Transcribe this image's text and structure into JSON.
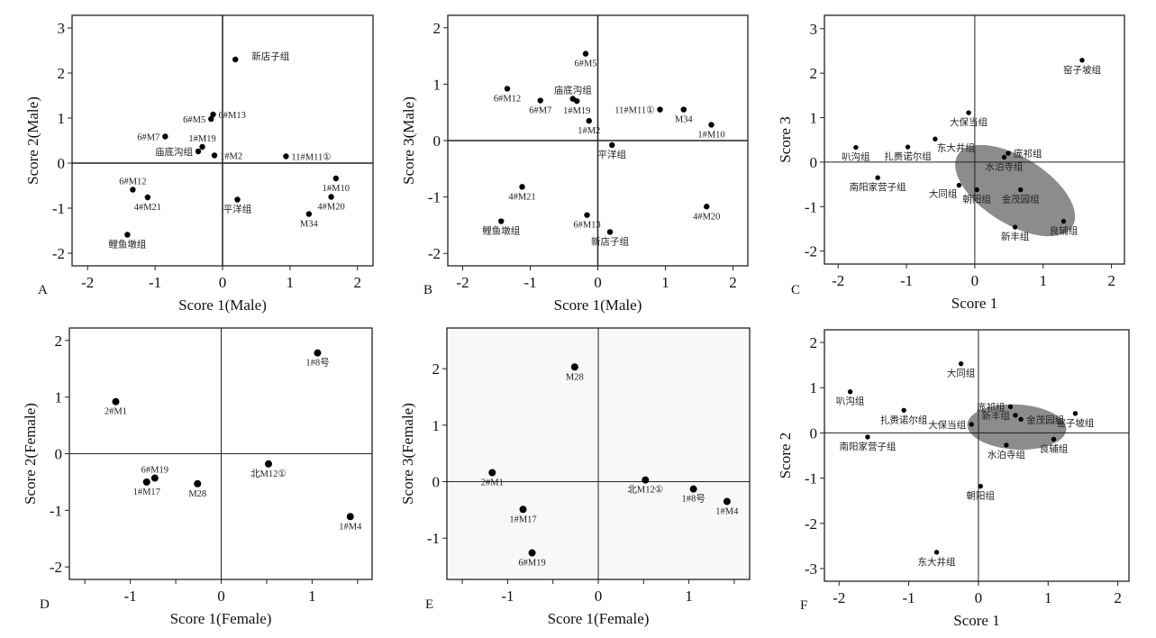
{
  "chart_data": [
    {
      "panel": "A",
      "type": "scatter",
      "xlabel": "Score 1(Male)",
      "ylabel": "Score 2(Male)",
      "xlim": [
        -2.23,
        2.23
      ],
      "ylim": [
        -2.28,
        3.28
      ],
      "xticks": [
        -2,
        -1,
        0,
        1,
        2
      ],
      "yticks": [
        -2,
        -1,
        0,
        1,
        2,
        3
      ],
      "points": [
        {
          "label": "新店子组",
          "x": 0.19,
          "y": 2.3,
          "pos": "right-far"
        },
        {
          "label": "6#M13",
          "x": -0.14,
          "y": 1.08,
          "pos": "right"
        },
        {
          "label": "6#M5",
          "x": -0.17,
          "y": 0.98,
          "pos": "left"
        },
        {
          "label": "6#M7",
          "x": -0.85,
          "y": 0.59,
          "pos": "left"
        },
        {
          "label": "1#M19",
          "x": -0.3,
          "y": 0.36,
          "pos": "above"
        },
        {
          "label": "庙底沟组",
          "x": -0.36,
          "y": 0.26,
          "pos": "left"
        },
        {
          "label": "1#M2",
          "x": -0.12,
          "y": 0.17,
          "pos": "right"
        },
        {
          "label": "11#M11①",
          "x": 0.94,
          "y": 0.15,
          "pos": "right"
        },
        {
          "label": "1#M10",
          "x": 1.68,
          "y": -0.34,
          "pos": "below"
        },
        {
          "label": "6#M12",
          "x": -1.33,
          "y": -0.59,
          "pos": "above"
        },
        {
          "label": "4#M21",
          "x": -1.11,
          "y": -0.76,
          "pos": "below"
        },
        {
          "label": "平洋组",
          "x": 0.22,
          "y": -0.81,
          "pos": "below"
        },
        {
          "label": "4#M20",
          "x": 1.61,
          "y": -0.75,
          "pos": "below"
        },
        {
          "label": "M34",
          "x": 1.28,
          "y": -1.13,
          "pos": "below"
        },
        {
          "label": "鲤鱼墩组",
          "x": -1.41,
          "y": -1.59,
          "pos": "below"
        }
      ]
    },
    {
      "panel": "B",
      "type": "scatter",
      "xlabel": "Score 1(Male)",
      "ylabel": "Score 3(Male)",
      "xlim": [
        -2.22,
        2.22
      ],
      "ylim": [
        -2.22,
        2.22
      ],
      "xticks": [
        -2,
        -1,
        0,
        1,
        2
      ],
      "yticks": [
        -2,
        -1,
        0,
        1,
        2
      ],
      "points": [
        {
          "label": "6#M5",
          "x": -0.18,
          "y": 1.54,
          "pos": "below"
        },
        {
          "label": "6#M12",
          "x": -1.34,
          "y": 0.92,
          "pos": "below"
        },
        {
          "label": "6#M7",
          "x": -0.85,
          "y": 0.71,
          "pos": "below"
        },
        {
          "label": "庙底沟组",
          "x": -0.37,
          "y": 0.74,
          "pos": "above"
        },
        {
          "label": "1#M19",
          "x": -0.31,
          "y": 0.7,
          "pos": "below"
        },
        {
          "label": "11#M11①",
          "x": 0.92,
          "y": 0.55,
          "pos": "left"
        },
        {
          "label": "M34",
          "x": 1.27,
          "y": 0.55,
          "pos": "below"
        },
        {
          "label": "1#M10",
          "x": 1.68,
          "y": 0.28,
          "pos": "below"
        },
        {
          "label": "1#M2",
          "x": -0.13,
          "y": 0.35,
          "pos": "below"
        },
        {
          "label": "平洋组",
          "x": 0.21,
          "y": -0.08,
          "pos": "below"
        },
        {
          "label": "4#M21",
          "x": -1.12,
          "y": -0.82,
          "pos": "below"
        },
        {
          "label": "4#M20",
          "x": 1.61,
          "y": -1.17,
          "pos": "below"
        },
        {
          "label": "6#M13",
          "x": -0.16,
          "y": -1.32,
          "pos": "below"
        },
        {
          "label": "鲤鱼墩组",
          "x": -1.43,
          "y": -1.43,
          "pos": "below"
        },
        {
          "label": "新店子组",
          "x": 0.18,
          "y": -1.62,
          "pos": "below"
        }
      ]
    },
    {
      "panel": "C",
      "type": "scatter",
      "xlabel": "Score 1",
      "ylabel": "Score 3",
      "xlim": [
        -2.2,
        2.19
      ],
      "ylim": [
        -2.29,
        3.3
      ],
      "xticks": [
        -2,
        -1,
        0,
        1,
        2
      ],
      "yticks": [
        -2,
        -1,
        0,
        1,
        2,
        3
      ],
      "ellipse_color": "#8c8c8c",
      "points": [
        {
          "label": "窑子坡组",
          "x": 1.57,
          "y": 2.29,
          "pos": "below"
        },
        {
          "label": "大保当组",
          "x": -0.09,
          "y": 1.11,
          "pos": "below"
        },
        {
          "label": "东大井组",
          "x": -0.58,
          "y": 0.52,
          "pos": "below-right"
        },
        {
          "label": "叭沟组",
          "x": -1.74,
          "y": 0.33,
          "pos": "below"
        },
        {
          "label": "扎赉诺尔组",
          "x": -0.98,
          "y": 0.34,
          "pos": "below"
        },
        {
          "label": "庞祁组",
          "x": 0.49,
          "y": 0.2,
          "pos": "right"
        },
        {
          "label": "水泊寺组",
          "x": 0.43,
          "y": 0.11,
          "pos": "below"
        },
        {
          "label": "南阳家营子组",
          "x": -1.42,
          "y": -0.35,
          "pos": "below"
        },
        {
          "label": "大同组",
          "x": -0.23,
          "y": -0.52,
          "pos": "below-left"
        },
        {
          "label": "朝阳组",
          "x": 0.03,
          "y": -0.62,
          "pos": "below"
        },
        {
          "label": "金茂园组",
          "x": 0.67,
          "y": -0.62,
          "pos": "below"
        },
        {
          "label": "新丰组",
          "x": 0.59,
          "y": -1.46,
          "pos": "below"
        },
        {
          "label": "良辅组",
          "x": 1.3,
          "y": -1.33,
          "pos": "below"
        }
      ]
    },
    {
      "panel": "D",
      "type": "scatter",
      "xlabel": "Score 1(Female)",
      "ylabel": "Score 2(Female)",
      "xlim": [
        -1.67,
        1.66
      ],
      "ylim": [
        -2.22,
        2.22
      ],
      "xticks": [
        -1,
        0,
        1
      ],
      "yticks": [
        -2,
        -1,
        0,
        1,
        2
      ],
      "points": [
        {
          "label": "1#8号",
          "x": 1.06,
          "y": 1.78,
          "pos": "below"
        },
        {
          "label": "2#M1",
          "x": -1.16,
          "y": 0.92,
          "pos": "below"
        },
        {
          "label": "6#M19",
          "x": -0.73,
          "y": -0.43,
          "pos": "above"
        },
        {
          "label": "1#M17",
          "x": -0.82,
          "y": -0.5,
          "pos": "below"
        },
        {
          "label": "M28",
          "x": -0.26,
          "y": -0.53,
          "pos": "below"
        },
        {
          "label": "北M12①",
          "x": 0.52,
          "y": -0.18,
          "pos": "below"
        },
        {
          "label": "1#M4",
          "x": 1.42,
          "y": -1.11,
          "pos": "below"
        }
      ]
    },
    {
      "panel": "E",
      "type": "scatter",
      "xlabel": "Score 1(Female)",
      "ylabel": "Score 3(Female)",
      "xlim": [
        -1.67,
        1.67
      ],
      "ylim": [
        -1.73,
        2.72
      ],
      "xticks": [
        -1,
        0,
        1
      ],
      "yticks": [
        -1,
        0,
        1,
        2
      ],
      "background": "#f8f8f8",
      "points": [
        {
          "label": "M28",
          "x": -0.26,
          "y": 2.03,
          "pos": "below"
        },
        {
          "label": "2#M1",
          "x": -1.17,
          "y": 0.16,
          "pos": "below"
        },
        {
          "label": "北M12①",
          "x": 0.52,
          "y": 0.03,
          "pos": "below"
        },
        {
          "label": "1#8号",
          "x": 1.05,
          "y": -0.13,
          "pos": "below"
        },
        {
          "label": "1#M4",
          "x": 1.42,
          "y": -0.35,
          "pos": "below"
        },
        {
          "label": "1#M17",
          "x": -0.83,
          "y": -0.49,
          "pos": "below"
        },
        {
          "label": "6#M19",
          "x": -0.73,
          "y": -1.26,
          "pos": "below"
        }
      ]
    },
    {
      "panel": "F",
      "type": "scatter",
      "xlabel": "Score 1",
      "ylabel": "Score 2",
      "xlim": [
        -2.21,
        2.16
      ],
      "ylim": [
        -3.28,
        2.28
      ],
      "xticks": [
        -2,
        -1,
        0,
        1,
        2
      ],
      "yticks": [
        -3,
        -2,
        -1,
        0,
        1,
        2
      ],
      "ellipse_color": "#8c8c8c",
      "points": [
        {
          "label": "大同组",
          "x": -0.25,
          "y": 1.53,
          "pos": "below"
        },
        {
          "label": "叭沟组",
          "x": -1.84,
          "y": 0.91,
          "pos": "below"
        },
        {
          "label": "扎赉诺尔组",
          "x": -1.07,
          "y": 0.5,
          "pos": "below"
        },
        {
          "label": "庞祁组",
          "x": 0.46,
          "y": 0.58,
          "pos": "left"
        },
        {
          "label": "新丰组",
          "x": 0.53,
          "y": 0.39,
          "pos": "left"
        },
        {
          "label": "金茂园组",
          "x": 0.61,
          "y": 0.3,
          "pos": "right"
        },
        {
          "label": "窑子坡组",
          "x": 1.39,
          "y": 0.43,
          "pos": "below"
        },
        {
          "label": "大保当组",
          "x": -0.1,
          "y": 0.19,
          "pos": "left"
        },
        {
          "label": "南阳家营子组",
          "x": -1.59,
          "y": -0.09,
          "pos": "below"
        },
        {
          "label": "良辅组",
          "x": 1.08,
          "y": -0.14,
          "pos": "below"
        },
        {
          "label": "水泊寺组",
          "x": 0.4,
          "y": -0.27,
          "pos": "below"
        },
        {
          "label": "朝阳组",
          "x": 0.03,
          "y": -1.18,
          "pos": "below"
        },
        {
          "label": "东大井组",
          "x": -0.6,
          "y": -2.64,
          "pos": "below"
        }
      ]
    }
  ]
}
